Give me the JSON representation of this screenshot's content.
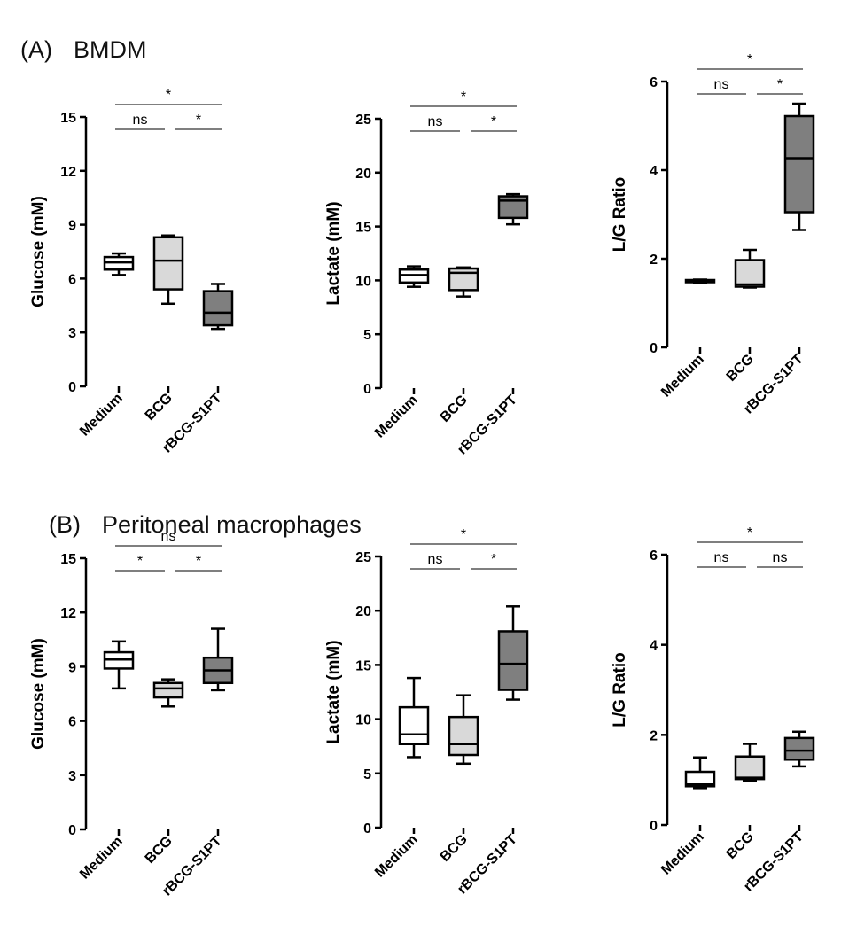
{
  "panels": [
    {
      "label": "(A)",
      "title": "BMDM"
    },
    {
      "label": "(B)",
      "title": "Peritoneal macrophages"
    }
  ],
  "colors": {
    "Medium": "#ffffff",
    "BCG": "#d9d9d9",
    "rBCG-S1PT": "#7f7f7f",
    "stroke": "#000000"
  },
  "chart_data": [
    {
      "type": "box",
      "panel": "(A)",
      "ylabel": "Glucose  (mM)",
      "ylim": [
        0,
        15
      ],
      "yticks": [
        0,
        3,
        6,
        9,
        12,
        15
      ],
      "categories": [
        "Medium",
        "BCG",
        "rBCG-S1PT"
      ],
      "boxes": [
        {
          "min": 6.2,
          "q1": 6.5,
          "median": 6.9,
          "q3": 7.2,
          "max": 7.4
        },
        {
          "min": 4.6,
          "q1": 5.4,
          "median": 7.0,
          "q3": 8.3,
          "max": 8.4
        },
        {
          "min": 3.2,
          "q1": 3.4,
          "median": 4.1,
          "q3": 5.3,
          "max": 5.7
        }
      ],
      "significance": [
        {
          "from": 0,
          "to": 2,
          "text": "*",
          "level": 2
        },
        {
          "from": 0,
          "to": 1,
          "text": "ns",
          "level": 1
        },
        {
          "from": 1,
          "to": 2,
          "text": "*",
          "level": 1
        }
      ]
    },
    {
      "type": "box",
      "panel": "(A)",
      "ylabel": "Lactate (mM)",
      "ylim": [
        0,
        25
      ],
      "yticks": [
        0,
        5,
        10,
        15,
        20,
        25
      ],
      "categories": [
        "Medium",
        "BCG",
        "rBCG-S1PT"
      ],
      "boxes": [
        {
          "min": 9.4,
          "q1": 9.8,
          "median": 10.5,
          "q3": 11.0,
          "max": 11.3
        },
        {
          "min": 8.5,
          "q1": 9.1,
          "median": 10.7,
          "q3": 11.1,
          "max": 11.2
        },
        {
          "min": 15.2,
          "q1": 15.8,
          "median": 17.4,
          "q3": 17.8,
          "max": 18.0
        }
      ],
      "significance": [
        {
          "from": 0,
          "to": 2,
          "text": "*",
          "level": 2
        },
        {
          "from": 0,
          "to": 1,
          "text": "ns",
          "level": 1
        },
        {
          "from": 1,
          "to": 2,
          "text": "*",
          "level": 1
        }
      ]
    },
    {
      "type": "box",
      "panel": "(A)",
      "ylabel": "L/G Ratio",
      "ylim": [
        0,
        6
      ],
      "yticks": [
        0,
        2,
        4,
        6
      ],
      "categories": [
        "Medium",
        "BCG",
        "rBCG-S1PT"
      ],
      "boxes": [
        {
          "min": 1.46,
          "q1": 1.47,
          "median": 1.5,
          "q3": 1.52,
          "max": 1.53
        },
        {
          "min": 1.35,
          "q1": 1.37,
          "median": 1.42,
          "q3": 1.97,
          "max": 2.2
        },
        {
          "min": 2.65,
          "q1": 3.05,
          "median": 4.27,
          "q3": 5.22,
          "max": 5.5
        }
      ],
      "significance": [
        {
          "from": 0,
          "to": 2,
          "text": "*",
          "level": 2
        },
        {
          "from": 0,
          "to": 1,
          "text": "ns",
          "level": 1
        },
        {
          "from": 1,
          "to": 2,
          "text": "*",
          "level": 1
        }
      ]
    },
    {
      "type": "box",
      "panel": "(B)",
      "ylabel": "Glucose  (mM)",
      "ylim": [
        0,
        15
      ],
      "yticks": [
        0,
        3,
        6,
        9,
        12,
        15
      ],
      "categories": [
        "Medium",
        "BCG",
        "rBCG-S1PT"
      ],
      "boxes": [
        {
          "min": 7.8,
          "q1": 8.9,
          "median": 9.4,
          "q3": 9.8,
          "max": 10.4
        },
        {
          "min": 6.8,
          "q1": 7.3,
          "median": 7.8,
          "q3": 8.1,
          "max": 8.3
        },
        {
          "min": 7.7,
          "q1": 8.1,
          "median": 8.8,
          "q3": 9.5,
          "max": 11.1
        }
      ],
      "significance": [
        {
          "from": 0,
          "to": 2,
          "text": "ns",
          "level": 2
        },
        {
          "from": 0,
          "to": 1,
          "text": "*",
          "level": 1
        },
        {
          "from": 1,
          "to": 2,
          "text": "*",
          "level": 1
        }
      ]
    },
    {
      "type": "box",
      "panel": "(B)",
      "ylabel": "Lactate (mM)",
      "ylim": [
        0,
        25
      ],
      "yticks": [
        0,
        5,
        10,
        15,
        20,
        25
      ],
      "categories": [
        "Medium",
        "BCG",
        "rBCG-S1PT"
      ],
      "boxes": [
        {
          "min": 6.5,
          "q1": 7.7,
          "median": 8.6,
          "q3": 11.1,
          "max": 13.8
        },
        {
          "min": 5.9,
          "q1": 6.7,
          "median": 7.7,
          "q3": 10.2,
          "max": 12.2
        },
        {
          "min": 11.8,
          "q1": 12.7,
          "median": 15.1,
          "q3": 18.1,
          "max": 20.4
        }
      ],
      "significance": [
        {
          "from": 0,
          "to": 2,
          "text": "*",
          "level": 2
        },
        {
          "from": 0,
          "to": 1,
          "text": "ns",
          "level": 1
        },
        {
          "from": 1,
          "to": 2,
          "text": "*",
          "level": 1
        }
      ]
    },
    {
      "type": "box",
      "panel": "(B)",
      "ylabel": "L/G Ratio",
      "ylim": [
        0,
        6
      ],
      "yticks": [
        0,
        2,
        4,
        6
      ],
      "categories": [
        "Medium",
        "BCG",
        "rBCG-S1PT"
      ],
      "boxes": [
        {
          "min": 0.82,
          "q1": 0.86,
          "median": 0.9,
          "q3": 1.18,
          "max": 1.5
        },
        {
          "min": 0.98,
          "q1": 1.02,
          "median": 1.05,
          "q3": 1.52,
          "max": 1.8
        },
        {
          "min": 1.3,
          "q1": 1.45,
          "median": 1.65,
          "q3": 1.93,
          "max": 2.07
        }
      ],
      "significance": [
        {
          "from": 0,
          "to": 2,
          "text": "*",
          "level": 2
        },
        {
          "from": 0,
          "to": 1,
          "text": "ns",
          "level": 1
        },
        {
          "from": 1,
          "to": 2,
          "text": "ns",
          "level": 1
        }
      ]
    }
  ]
}
